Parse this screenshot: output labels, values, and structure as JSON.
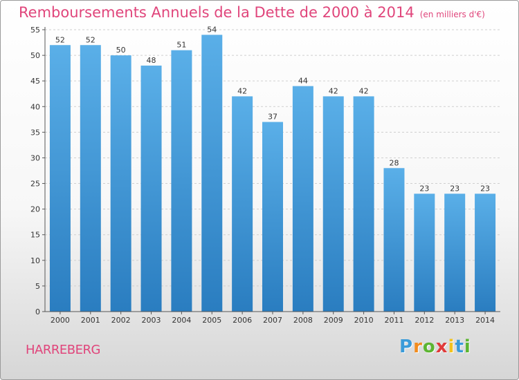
{
  "header": {
    "title": "Remboursements Annuels de la Dette de 2000 à 2014",
    "unit": "(en milliers d'€)"
  },
  "footer": {
    "place": "HARREBERG",
    "brand": [
      "P",
      "r",
      "o",
      "x",
      "i",
      "t",
      "i"
    ],
    "brand_colors": [
      "#3a9bd9",
      "#f28c1e",
      "#5cb531",
      "#e03a3a",
      "#f2c21e",
      "#3a9bd9",
      "#5cb531"
    ]
  },
  "chart_data": {
    "type": "bar",
    "title": "Remboursements Annuels de la Dette de 2000 à 2014",
    "subtitle": "(en milliers d'€)",
    "categories": [
      "2000",
      "2001",
      "2002",
      "2003",
      "2004",
      "2005",
      "2006",
      "2007",
      "2008",
      "2009",
      "2010",
      "2011",
      "2012",
      "2013",
      "2014"
    ],
    "values": [
      52,
      52,
      50,
      48,
      51,
      54,
      42,
      37,
      44,
      42,
      42,
      28,
      23,
      23,
      23
    ],
    "ylim": [
      0,
      55
    ],
    "yticks": [
      0,
      5,
      10,
      15,
      20,
      25,
      30,
      35,
      40,
      45,
      50,
      55
    ],
    "grid": true,
    "bar_color_top": "#5aafe8",
    "bar_color_bottom": "#2a7dc0",
    "title_color": "#e0457b"
  }
}
